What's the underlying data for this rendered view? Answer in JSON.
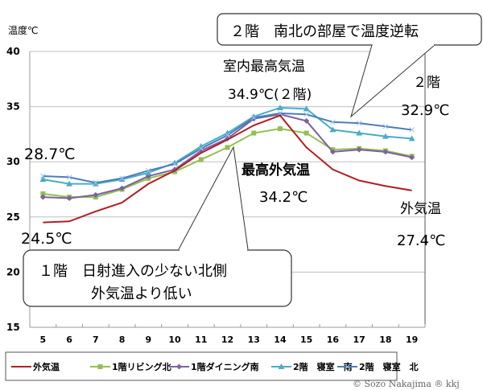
{
  "chart_data": {
    "type": "line",
    "title": "",
    "xlabel": "",
    "ylabel": "温度℃",
    "x": [
      5,
      6,
      7,
      8,
      9,
      10,
      11,
      12,
      13,
      14,
      15,
      16,
      17,
      18,
      19
    ],
    "xlim": [
      4.5,
      19.5
    ],
    "ylim": [
      15,
      40
    ],
    "yticks": [
      15,
      20,
      25,
      30,
      35,
      40
    ],
    "grid": "horizontal",
    "legend_position": "bottom",
    "series": [
      {
        "name": "外気温",
        "color": "#b11f24",
        "marker": "none",
        "values": [
          24.5,
          24.6,
          25.5,
          26.3,
          28.0,
          29.2,
          30.8,
          32.0,
          33.3,
          34.2,
          31.3,
          29.3,
          28.3,
          27.8,
          27.4
        ]
      },
      {
        "name": "1階リビング北",
        "color": "#92c050",
        "marker": "square",
        "values": [
          27.1,
          26.8,
          26.8,
          27.5,
          28.5,
          29.1,
          30.2,
          31.3,
          32.6,
          33.0,
          32.6,
          31.1,
          31.2,
          31.0,
          30.5
        ]
      },
      {
        "name": "1階ダイニング南",
        "color": "#7e60a2",
        "marker": "diamond",
        "values": [
          26.8,
          26.7,
          27.0,
          27.6,
          28.7,
          29.3,
          31.0,
          32.1,
          33.9,
          34.3,
          33.7,
          30.9,
          31.1,
          30.9,
          30.4
        ]
      },
      {
        "name": "2階　寝室　南",
        "color": "#4bacc6",
        "marker": "triangle",
        "values": [
          28.4,
          28.0,
          28.0,
          28.4,
          29.0,
          29.9,
          31.4,
          32.6,
          34.1,
          34.9,
          34.8,
          32.9,
          32.6,
          32.3,
          32.1
        ]
      },
      {
        "name": "2階　寝室　北",
        "color": "#4a7ebb",
        "marker": "x",
        "values": [
          28.7,
          28.6,
          28.1,
          28.5,
          29.2,
          29.8,
          31.2,
          32.4,
          34.0,
          34.4,
          34.3,
          33.6,
          33.5,
          33.2,
          32.9
        ]
      }
    ],
    "annotations": {
      "callout_top": "２階　南北の部屋で温度逆転",
      "callout_bottom_line1": "１階　日射進入の少ない北側",
      "callout_bottom_line2": "外気温より低い",
      "indoor_max_title": "室内最高気温",
      "indoor_max_value": "34.9℃(２階)",
      "outdoor_max_title": "最高外気温",
      "outdoor_max_value": "34.2℃",
      "floor2_label": "２階",
      "floor2_value": "32.9℃",
      "outdoor_end_label": "外気温",
      "outdoor_end_value": "27.4℃",
      "start_high_value": "28.7℃",
      "start_low_value": "24.5℃"
    }
  },
  "copyright": "© Sozo Nakajima ® kkj"
}
